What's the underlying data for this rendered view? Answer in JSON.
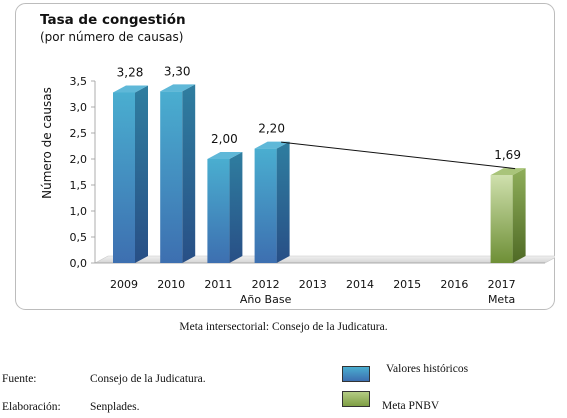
{
  "colors": {
    "historic": "#4a9ac9",
    "goal": "#86a84e",
    "panel_border": "#bcbcbc",
    "trend_line": "#111111"
  },
  "chart_data": {
    "type": "bar",
    "title": "Tasa de congestión",
    "subtitle": "(por número de causas)",
    "ylabel": "Número de causas",
    "xlabel": "",
    "ylim": [
      0,
      3.5
    ],
    "yticks": [
      "0,0",
      "0,5",
      "1,0",
      "1,5",
      "2,0",
      "2,5",
      "3,0",
      "3,5"
    ],
    "categories": [
      "2009",
      "2010",
      "2011",
      "2012",
      "2013",
      "2014",
      "2015",
      "2016",
      "2017"
    ],
    "category_sublabels": [
      "",
      "",
      "",
      "Año Base",
      "",
      "",
      "",
      "",
      "Meta"
    ],
    "series": [
      {
        "name": "Valores históricos",
        "values": [
          3.28,
          3.3,
          2.0,
          2.2,
          null,
          null,
          null,
          null,
          null
        ]
      },
      {
        "name": "Meta PNBV",
        "values": [
          null,
          null,
          null,
          null,
          null,
          null,
          null,
          null,
          1.69
        ]
      }
    ],
    "data_labels": [
      "3,28",
      "3,30",
      "2,00",
      "2,20",
      "",
      "",
      "",
      "",
      "1,69"
    ],
    "trend_line": {
      "from": "2012",
      "to": "2017"
    },
    "grid": false
  },
  "note": "Meta intersectorial: Consejo de la Judicatura.",
  "source": {
    "fuente_label": "Fuente:",
    "fuente_value": "Consejo de la Judicatura.",
    "elaboracion_label": "Elaboración:",
    "elaboracion_value": "Senplades."
  },
  "legend": {
    "historic": "Valores históricos",
    "goal": "Meta PNBV"
  }
}
